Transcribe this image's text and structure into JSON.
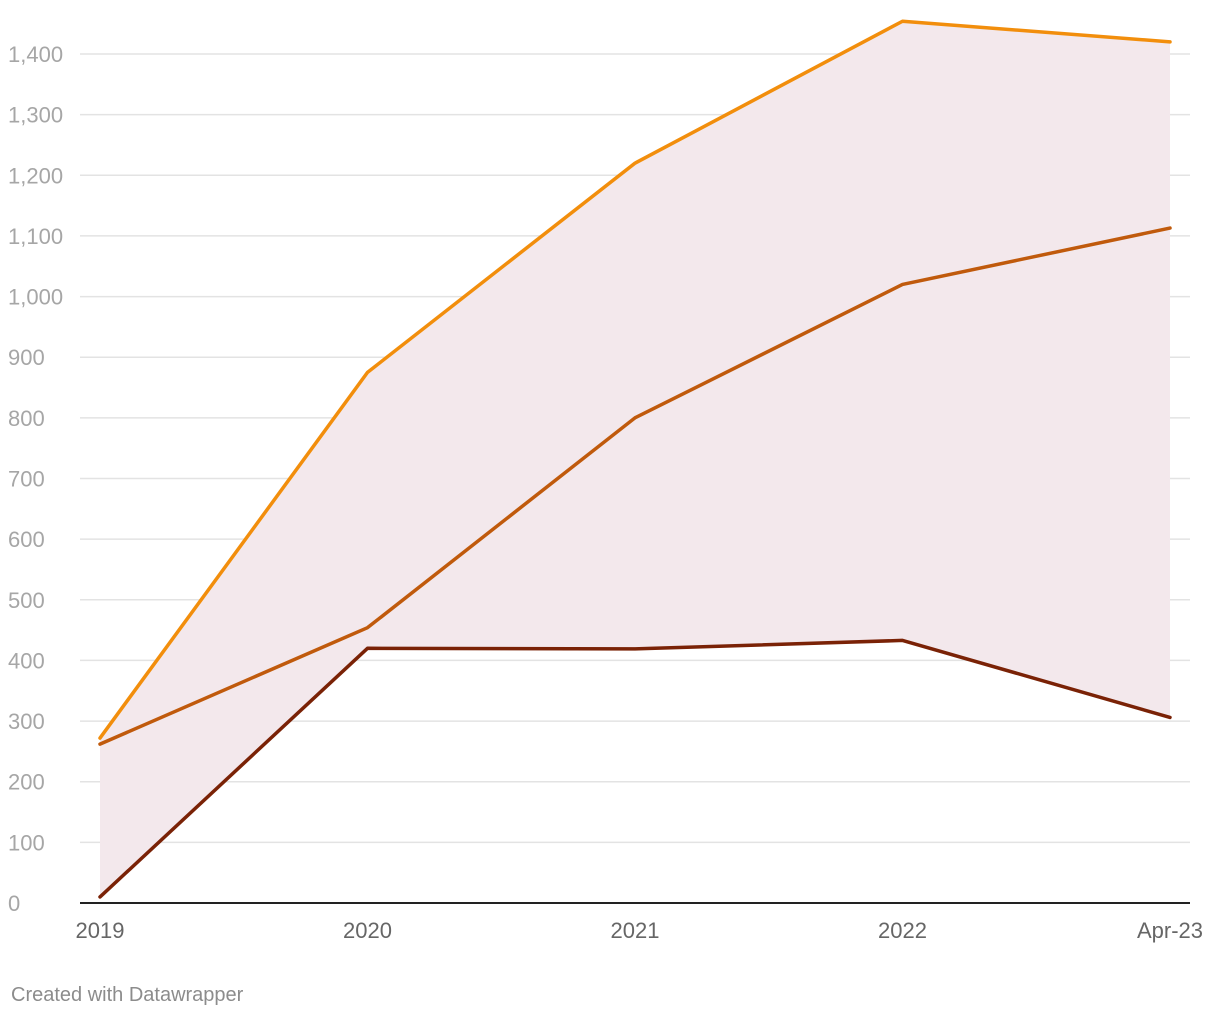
{
  "chart_data": {
    "type": "line",
    "x": [
      "2019",
      "2020",
      "2021",
      "2022",
      "Apr-23"
    ],
    "series": [
      {
        "values": [
          272,
          875,
          1220,
          1454,
          1420
        ],
        "color": "#f28e0c"
      },
      {
        "values": [
          262,
          454,
          800,
          1020,
          1113
        ],
        "color": "#c05a0c"
      },
      {
        "values": [
          10,
          420,
          419,
          433,
          306
        ],
        "color": "#7a2206"
      }
    ],
    "area_fill": {
      "upper_series": 0,
      "lower_series": 2,
      "color": "#f3e8ec"
    },
    "ylim": [
      0,
      1400
    ],
    "y_ticks": [
      0,
      100,
      200,
      300,
      400,
      500,
      600,
      700,
      800,
      900,
      1000,
      1100,
      1200,
      1300,
      1400
    ],
    "y_tick_labels": [
      "0",
      "100",
      "200",
      "300",
      "400",
      "500",
      "600",
      "700",
      "800",
      "900",
      "1,000",
      "1,100",
      "1,200",
      "1,300",
      "1,400"
    ],
    "grid": true,
    "title": "",
    "xlabel": "",
    "ylabel": ""
  },
  "credit": "Created with Datawrapper"
}
